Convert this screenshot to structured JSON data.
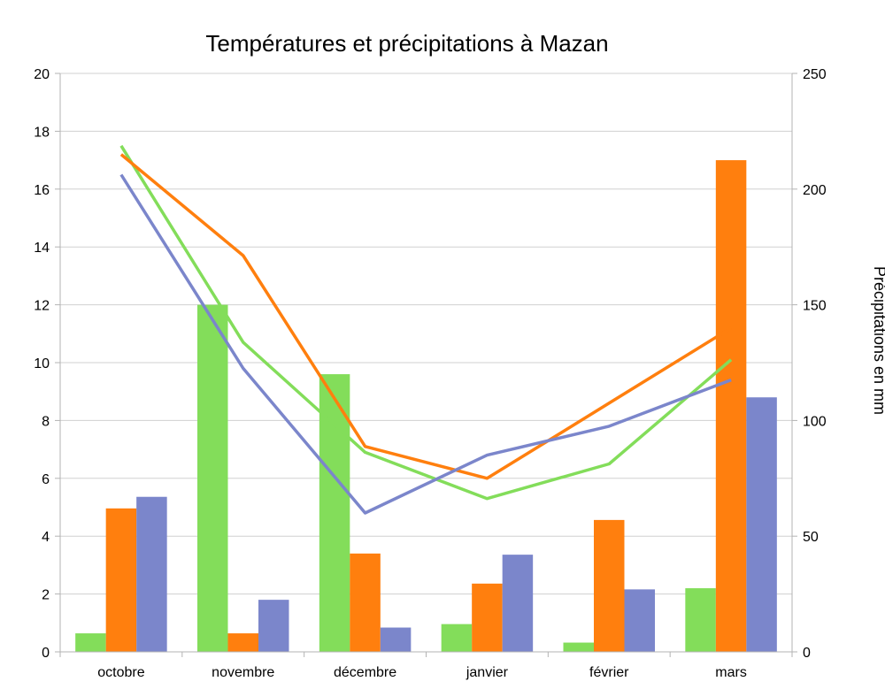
{
  "chart_data": {
    "type": "bar",
    "title": "Températures et précipitations à Mazan",
    "categories": [
      "octobre",
      "novembre",
      "décembre",
      "janvier",
      "février",
      "mars"
    ],
    "ylabel": "",
    "y2label": "Précipitations en mm",
    "ylim": [
      0,
      20
    ],
    "y2lim": [
      0,
      250
    ],
    "yticks": [
      "0",
      "2",
      "4",
      "6",
      "8",
      "10",
      "12",
      "14",
      "16",
      "18",
      "20"
    ],
    "y2ticks": [
      "0",
      "50",
      "100",
      "150",
      "200",
      "250"
    ],
    "grid": true,
    "bar_series": [
      {
        "color": "#83dd5a",
        "axis": "right",
        "values": [
          8,
          150,
          120,
          12,
          4,
          27.5
        ]
      },
      {
        "color": "#ff7f0e",
        "axis": "right",
        "values": [
          62,
          8,
          42.5,
          29.5,
          57,
          212.5
        ]
      },
      {
        "color": "#7b86cb",
        "axis": "right",
        "values": [
          67,
          22.5,
          10.5,
          42,
          27,
          110
        ]
      }
    ],
    "line_series": [
      {
        "color": "#83dd5a",
        "axis": "left",
        "values": [
          17.5,
          10.7,
          6.9,
          5.3,
          6.5,
          10.1
        ]
      },
      {
        "color": "#ff7f0e",
        "axis": "left",
        "values": [
          17.2,
          13.7,
          7.1,
          6.0,
          8.6,
          11.2
        ]
      },
      {
        "color": "#7b86cb",
        "axis": "left",
        "values": [
          16.5,
          9.8,
          4.8,
          6.8,
          7.8,
          9.4
        ]
      }
    ]
  }
}
